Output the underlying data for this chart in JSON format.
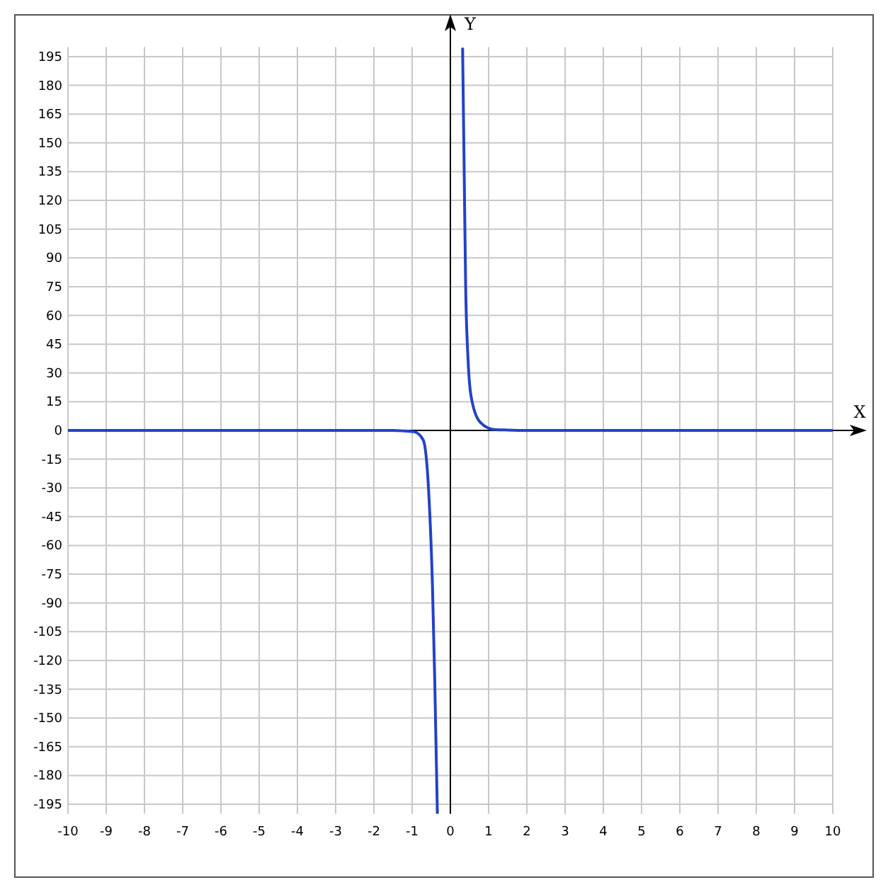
{
  "chart_data": {
    "type": "line",
    "xlabel": "X",
    "ylabel": "Y",
    "x": [
      -10,
      -5,
      -2,
      -1.5,
      -1.2,
      -0.95,
      -0.71,
      -0.57,
      -0.47,
      -0.41,
      -0.34,
      null,
      0.32,
      0.36,
      0.4,
      0.46,
      0.54,
      0.77,
      1.14,
      1.5,
      2,
      5,
      10
    ],
    "series": [
      {
        "color": "#2342c8",
        "values": [
          0,
          0,
          0,
          0,
          -0.3,
          -0.7,
          -5,
          -31,
          -80,
          -129,
          -200,
          null,
          199,
          137,
          75,
          38,
          18,
          4.5,
          0.5,
          0.2,
          0,
          0,
          0
        ]
      }
    ],
    "xlim": [
      -10,
      10
    ],
    "ylim": [
      -200,
      200
    ],
    "xticks": [
      -10,
      -9,
      -8,
      -7,
      -6,
      -5,
      -4,
      -3,
      -2,
      -1,
      0,
      1,
      2,
      3,
      4,
      5,
      6,
      7,
      8,
      9,
      10
    ],
    "yticks": [
      -195,
      -180,
      -165,
      -150,
      -135,
      -120,
      -105,
      -90,
      -75,
      -60,
      -45,
      -30,
      -15,
      0,
      15,
      30,
      45,
      60,
      75,
      90,
      105,
      120,
      135,
      150,
      165,
      180,
      195
    ],
    "grid": true,
    "marker": "none",
    "line_style": "solid"
  }
}
